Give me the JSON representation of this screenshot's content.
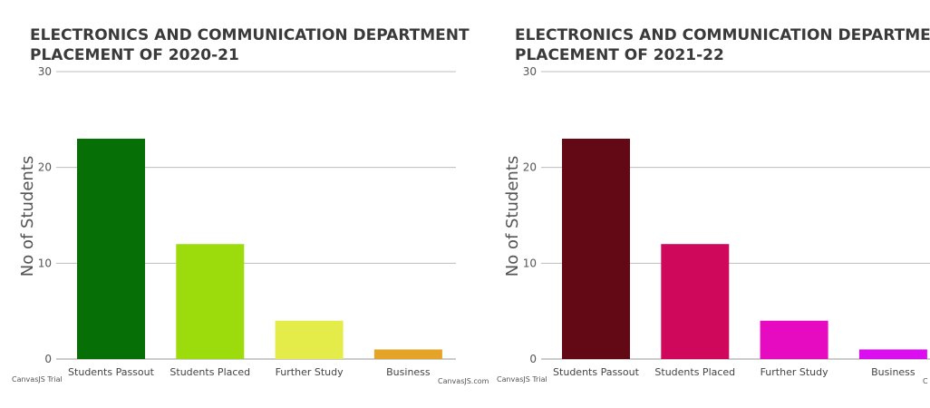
{
  "chart_data": [
    {
      "type": "bar",
      "title_lines": [
        "ELECTRONICS AND COMMUNICATION DEPARTMENT",
        "PLACEMENT OF 2020-21"
      ],
      "ylabel": "No of Students",
      "categories": [
        "Students Passout",
        "Students Placed",
        "Further Study",
        "Business"
      ],
      "values": [
        23,
        12,
        4,
        1
      ],
      "colors": [
        "#067007",
        "#9ddc0c",
        "#e4ec4a",
        "#e5a427"
      ],
      "ylim": [
        0,
        30
      ],
      "yticks": [
        0,
        10,
        20,
        30
      ],
      "grid": true,
      "credit_left": "CanvasJS Trial",
      "credit_right": "CanvasJS.com"
    },
    {
      "type": "bar",
      "title_lines": [
        "ELECTRONICS AND COMMUNICATION DEPARTMENT",
        "PLACEMENT OF 2021-22"
      ],
      "ylabel": "No of Students",
      "categories": [
        "Students Passout",
        "Students Placed",
        "Further Study",
        "Business"
      ],
      "values": [
        23,
        12,
        4,
        1
      ],
      "colors": [
        "#630815",
        "#d0085c",
        "#e60bc0",
        "#db0ef0"
      ],
      "ylim": [
        0,
        30
      ],
      "yticks": [
        0,
        10,
        20,
        30
      ],
      "grid": true,
      "credit_left": "CanvasJS Trial",
      "credit_right": "C"
    }
  ]
}
